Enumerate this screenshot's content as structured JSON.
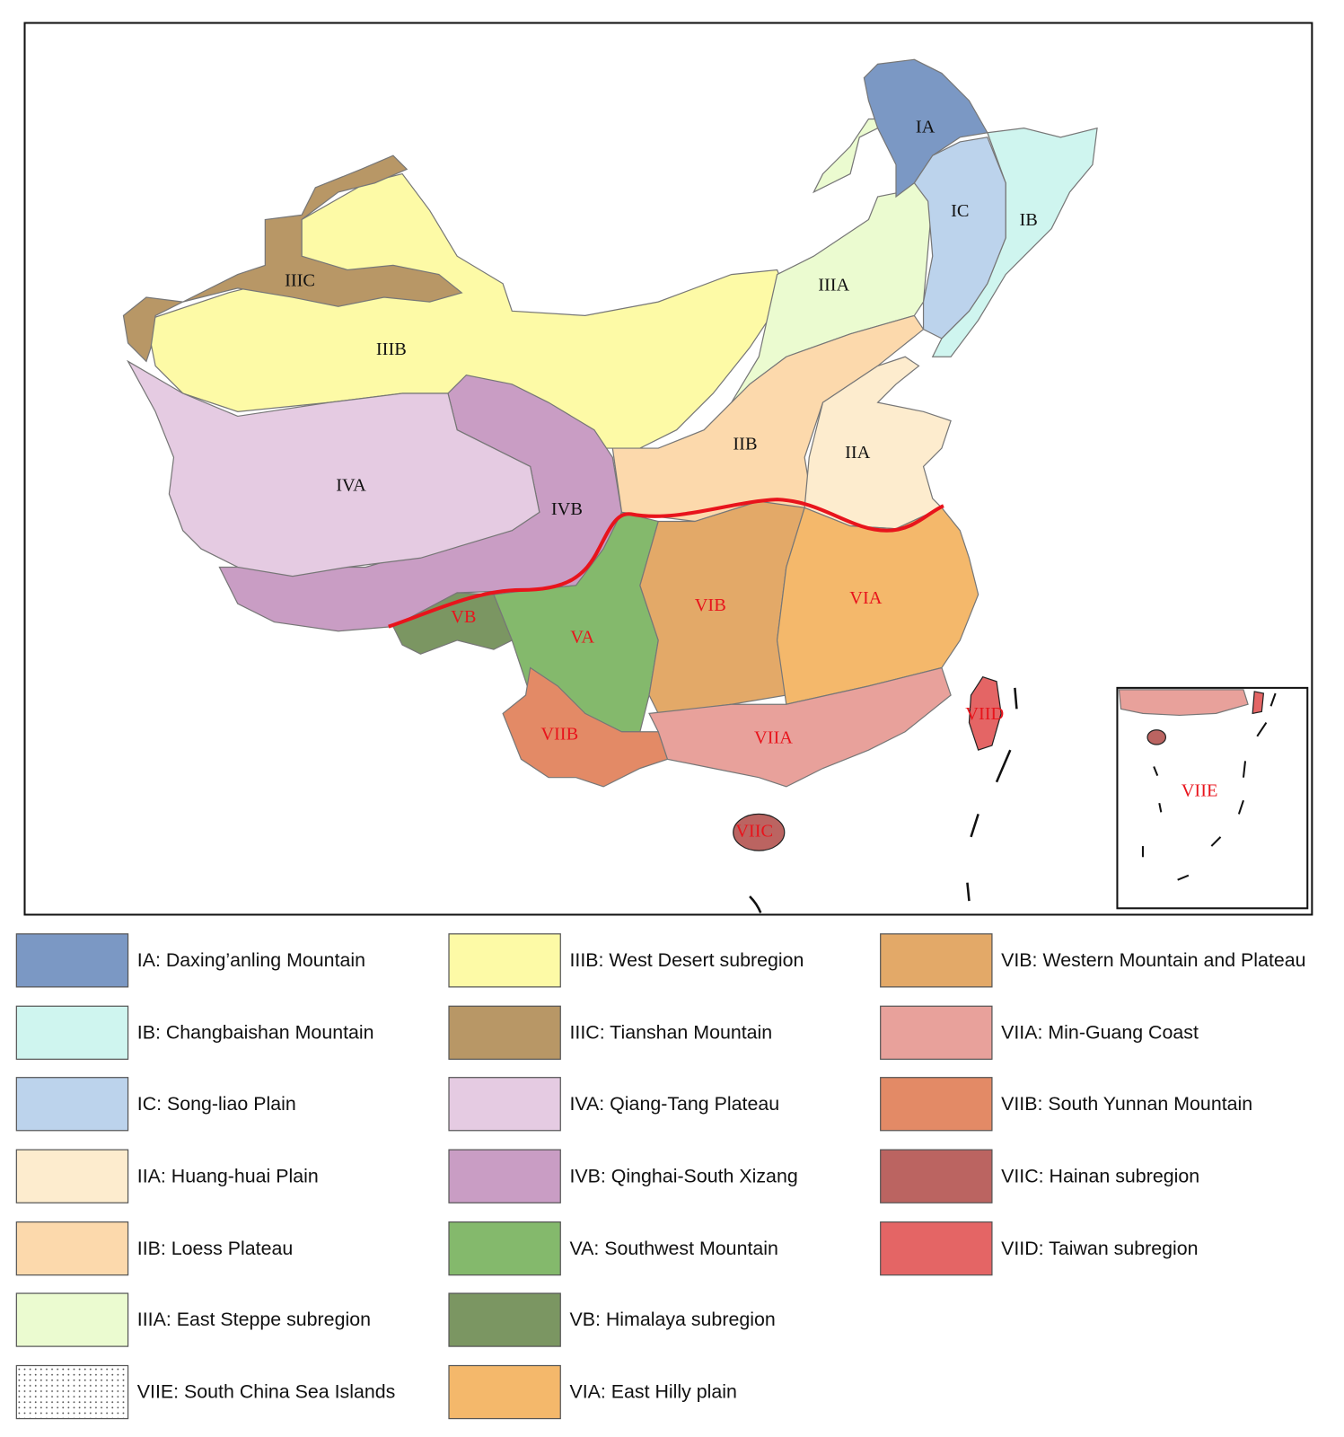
{
  "map": {
    "labels": [
      {
        "text": "IA",
        "color": "#111111"
      },
      {
        "text": "IC",
        "color": "#111111"
      },
      {
        "text": "IB",
        "color": "#111111"
      },
      {
        "text": "IIIC",
        "color": "#111111"
      },
      {
        "text": "IIIA",
        "color": "#111111"
      },
      {
        "text": "IIIB",
        "color": "#111111"
      },
      {
        "text": "IIB",
        "color": "#111111"
      },
      {
        "text": "IIA",
        "color": "#111111"
      },
      {
        "text": "IVA",
        "color": "#111111"
      },
      {
        "text": "IVB",
        "color": "#111111"
      },
      {
        "text": "VIB",
        "color": "#e8141c"
      },
      {
        "text": "VIA",
        "color": "#e8141c"
      },
      {
        "text": "VB",
        "color": "#e8141c"
      },
      {
        "text": "VA",
        "color": "#e8141c"
      },
      {
        "text": "VIID",
        "color": "#e8141c"
      },
      {
        "text": "VIIB",
        "color": "#e8141c"
      },
      {
        "text": "VIIA",
        "color": "#e8141c"
      },
      {
        "text": "VIIC",
        "color": "#e8141c"
      },
      {
        "text": "VIIE",
        "color": "#e8141c"
      }
    ]
  },
  "legend": {
    "items": [
      {
        "label": "IA: Daxing’anling Mountain",
        "color": "#7b98c4"
      },
      {
        "label": "IB: Changbaishan Mountain",
        "color": "#cff5ef"
      },
      {
        "label": "IC: Song-liao Plain",
        "color": "#bcd3ec"
      },
      {
        "label": "IIA: Huang-huai Plain",
        "color": "#fdecce"
      },
      {
        "label": "IIB: Loess Plateau",
        "color": "#fcd9ac"
      },
      {
        "label": "IIIA: East Steppe subregion",
        "color": "#ebfbd0"
      },
      {
        "label": "VIIE: South China Sea Islands",
        "color": "#ffffff",
        "pattern": "dots"
      },
      {
        "label": "IIIB: West Desert subregion",
        "color": "#fdfaa6"
      },
      {
        "label": "IIIC: Tianshan Mountain",
        "color": "#b89766"
      },
      {
        "label": "IVA: Qiang-Tang Plateau",
        "color": "#e5cbe2"
      },
      {
        "label": "IVB: Qinghai-South Xizang",
        "color": "#c99dc4"
      },
      {
        "label": "VA: Southwest Mountain",
        "color": "#84b96c"
      },
      {
        "label": "VB: Himalaya subregion",
        "color": "#7b9662"
      },
      {
        "label": "VIA: East Hilly plain",
        "color": "#f4b86b"
      },
      {
        "label": "VIB: Western Mountain and Plateau",
        "color": "#e3a968"
      },
      {
        "label": "VIIA: Min-Guang Coast",
        "color": "#e8a19b"
      },
      {
        "label": "VIIB: South Yunnan Mountain",
        "color": "#e38a66"
      },
      {
        "label": "VIIC: Hainan subregion",
        "color": "#bb6461"
      },
      {
        "label": "VIID: Taiwan subregion",
        "color": "#e46565"
      }
    ]
  }
}
